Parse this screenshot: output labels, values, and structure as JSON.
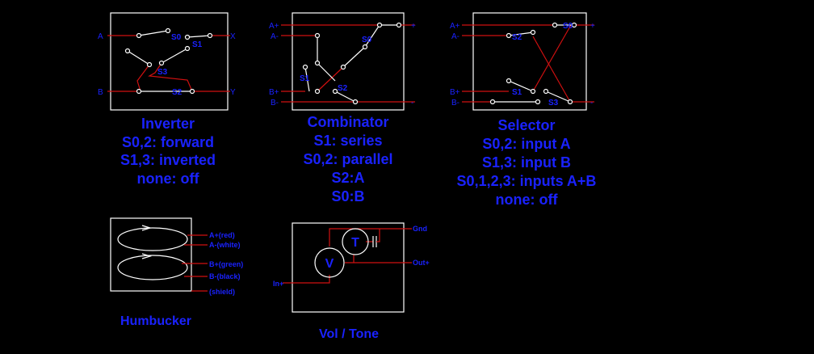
{
  "inverter": {
    "pins": {
      "a": "A",
      "b": "B",
      "x": "X",
      "y": "Y"
    },
    "switches": [
      "S0",
      "S1",
      "S2",
      "S3"
    ],
    "caption": [
      "Inverter",
      "S0,2: forward",
      "S1,3: inverted",
      "none: off"
    ]
  },
  "combinator": {
    "pins": {
      "a_plus": "A+",
      "a_minus": "A-",
      "b_plus": "B+",
      "b_minus": "B-",
      "out_plus": "+",
      "out_minus": "-"
    },
    "switches": [
      "S0",
      "S1",
      "S2"
    ],
    "caption": [
      "Combinator",
      "S1: series",
      "S0,2: parallel",
      "S2:A",
      "S0:B"
    ]
  },
  "selector": {
    "pins": {
      "a_plus": "A+",
      "a_minus": "A-",
      "b_plus": "B+",
      "b_minus": "B-",
      "out_plus": "+",
      "out_minus": "-"
    },
    "switches": [
      "S0",
      "S1",
      "S2",
      "S3"
    ],
    "caption": [
      "Selector",
      "S0,2: input A",
      "S1,3: input B",
      "S0,1,2,3: inputs A+B",
      "none: off"
    ]
  },
  "humbucker": {
    "wires": [
      "A+(red)",
      "A-(white)",
      "B+(green)",
      "B-(black)",
      "(shield)"
    ],
    "caption": "Humbucker"
  },
  "voltone": {
    "pins": {
      "gnd": "Gnd",
      "in": "In+",
      "out": "Out+"
    },
    "symbols": {
      "volume": "V",
      "tone": "T"
    },
    "caption": "Vol / Tone"
  }
}
